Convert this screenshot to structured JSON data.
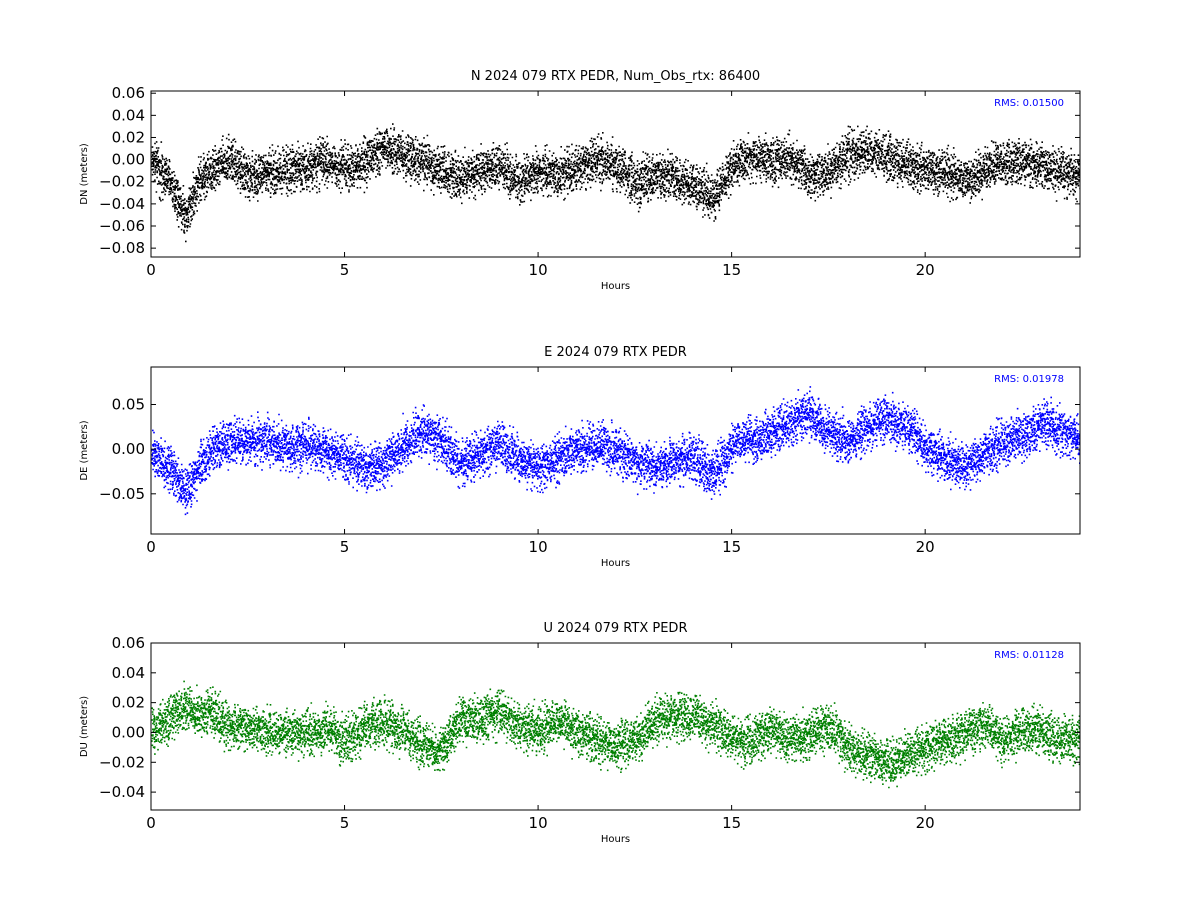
{
  "chart_data": [
    {
      "type": "scatter",
      "title": "N 2024 079 RTX  PEDR, Num_Obs_rtx: 86400",
      "xlabel": "Hours",
      "ylabel": "DN (meters)",
      "xlim": [
        0,
        24
      ],
      "ylim": [
        -0.088,
        0.062
      ],
      "xticks": [
        "0",
        "5",
        "10",
        "15",
        "20"
      ],
      "yticks": [
        "0.06",
        "0.04",
        "0.02",
        "0.00",
        "−0.02",
        "−0.04",
        "−0.06",
        "−0.08"
      ],
      "ytick_values": [
        0.06,
        0.04,
        0.02,
        0.0,
        -0.02,
        -0.04,
        -0.06,
        -0.08
      ],
      "color": "#000000",
      "annotation": "RMS:  0.01500",
      "annotation_color": "#0000ff",
      "grid": false,
      "series": [
        {
          "x": [
            0.0,
            0.25,
            0.5,
            0.75,
            0.9,
            1.2,
            1.5,
            2.0,
            2.5,
            3.0,
            3.5,
            4.0,
            4.5,
            5.0,
            5.5,
            6.0,
            6.5,
            7.0,
            7.5,
            8.0,
            8.5,
            9.0,
            9.5,
            10.0,
            10.5,
            11.0,
            11.5,
            12.0,
            12.5,
            13.0,
            13.5,
            14.0,
            14.5,
            15.0,
            15.5,
            16.0,
            16.5,
            17.0,
            17.5,
            18.0,
            18.5,
            19.0,
            19.5,
            20.0,
            20.5,
            21.0,
            21.5,
            22.0,
            22.5,
            23.0,
            23.5,
            24.0
          ],
          "y": [
            0.0,
            -0.01,
            -0.02,
            -0.04,
            -0.05,
            -0.02,
            -0.01,
            0.0,
            -0.015,
            -0.012,
            -0.008,
            -0.005,
            -0.002,
            -0.006,
            -0.003,
            0.01,
            0.005,
            -0.002,
            -0.008,
            -0.015,
            -0.01,
            -0.005,
            -0.02,
            -0.01,
            -0.012,
            -0.008,
            0.0,
            -0.005,
            -0.02,
            -0.012,
            -0.015,
            -0.022,
            -0.035,
            -0.005,
            0.002,
            0.0,
            0.003,
            -0.015,
            -0.01,
            0.005,
            0.008,
            0.002,
            -0.005,
            -0.008,
            -0.01,
            -0.02,
            -0.01,
            -0.003,
            0.0,
            -0.005,
            -0.01,
            -0.015
          ]
        }
      ]
    },
    {
      "type": "scatter",
      "title": "E 2024 079 RTX  PEDR",
      "xlabel": "Hours",
      "ylabel": "DE (meters)",
      "xlim": [
        0,
        24
      ],
      "ylim": [
        -0.095,
        0.092
      ],
      "xticks": [
        "0",
        "5",
        "10",
        "15",
        "20"
      ],
      "yticks": [
        "0.05",
        "0.00",
        "−0.05"
      ],
      "ytick_values": [
        0.05,
        0.0,
        -0.05
      ],
      "color": "#0000ff",
      "annotation": "RMS:  0.01978",
      "annotation_color": "#0000ff",
      "grid": false,
      "series": [
        {
          "x": [
            0.0,
            0.25,
            0.5,
            0.75,
            0.9,
            1.2,
            1.5,
            2.0,
            2.5,
            3.0,
            3.5,
            4.0,
            4.5,
            5.0,
            5.5,
            6.0,
            6.5,
            7.0,
            7.5,
            8.0,
            8.5,
            9.0,
            9.5,
            10.0,
            10.5,
            11.0,
            11.5,
            12.0,
            12.5,
            13.0,
            13.5,
            14.0,
            14.5,
            15.0,
            15.5,
            16.0,
            16.5,
            17.0,
            17.5,
            18.0,
            18.5,
            19.0,
            19.5,
            20.0,
            20.5,
            21.0,
            21.5,
            22.0,
            22.5,
            23.0,
            23.5,
            24.0
          ],
          "y": [
            0.0,
            -0.01,
            -0.025,
            -0.04,
            -0.045,
            -0.02,
            -0.005,
            0.01,
            0.008,
            0.01,
            0.002,
            0.005,
            0.0,
            -0.01,
            -0.02,
            -0.015,
            0.005,
            0.02,
            0.01,
            -0.015,
            -0.005,
            0.005,
            -0.01,
            -0.02,
            -0.01,
            0.002,
            0.005,
            0.0,
            -0.015,
            -0.02,
            -0.01,
            -0.01,
            -0.03,
            0.005,
            0.01,
            0.02,
            0.03,
            0.04,
            0.02,
            0.01,
            0.025,
            0.035,
            0.025,
            0.0,
            -0.01,
            -0.02,
            -0.005,
            0.01,
            0.015,
            0.03,
            0.02,
            0.01
          ]
        }
      ]
    },
    {
      "type": "scatter",
      "title": "U 2024 079 RTX  PEDR",
      "xlabel": "Hours",
      "ylabel": "DU (meters)",
      "xlim": [
        0,
        24
      ],
      "ylim": [
        -0.052,
        0.06
      ],
      "xticks": [
        "0",
        "5",
        "10",
        "15",
        "20"
      ],
      "yticks": [
        "0.06",
        "0.04",
        "0.02",
        "0.00",
        "−0.02",
        "−0.04"
      ],
      "ytick_values": [
        0.06,
        0.04,
        0.02,
        0.0,
        -0.02,
        -0.04
      ],
      "color": "#008000",
      "annotation": "RMS:  0.01128",
      "annotation_color": "#0000ff",
      "grid": false,
      "series": [
        {
          "x": [
            0.0,
            0.25,
            0.5,
            0.75,
            0.9,
            1.2,
            1.5,
            2.0,
            2.5,
            3.0,
            3.5,
            4.0,
            4.5,
            5.0,
            5.5,
            6.0,
            6.5,
            7.0,
            7.5,
            8.0,
            8.5,
            9.0,
            9.5,
            10.0,
            10.5,
            11.0,
            11.5,
            12.0,
            12.5,
            13.0,
            13.5,
            14.0,
            14.5,
            15.0,
            15.5,
            16.0,
            16.5,
            17.0,
            17.5,
            18.0,
            18.5,
            19.0,
            19.5,
            20.0,
            20.5,
            21.0,
            21.5,
            22.0,
            22.5,
            23.0,
            23.5,
            24.0
          ],
          "y": [
            0.002,
            0.005,
            0.01,
            0.015,
            0.018,
            0.012,
            0.015,
            0.005,
            0.004,
            0.0,
            0.002,
            -0.002,
            0.003,
            -0.005,
            0.004,
            0.008,
            0.0,
            -0.008,
            -0.01,
            0.01,
            0.008,
            0.015,
            0.005,
            0.002,
            0.008,
            0.0,
            -0.005,
            -0.008,
            -0.005,
            0.008,
            0.012,
            0.01,
            0.005,
            -0.005,
            -0.005,
            0.003,
            -0.005,
            0.0,
            0.005,
            -0.01,
            -0.015,
            -0.02,
            -0.015,
            -0.01,
            -0.005,
            0.0,
            0.005,
            -0.005,
            0.002,
            0.0,
            -0.005,
            -0.002
          ]
        }
      ]
    }
  ]
}
